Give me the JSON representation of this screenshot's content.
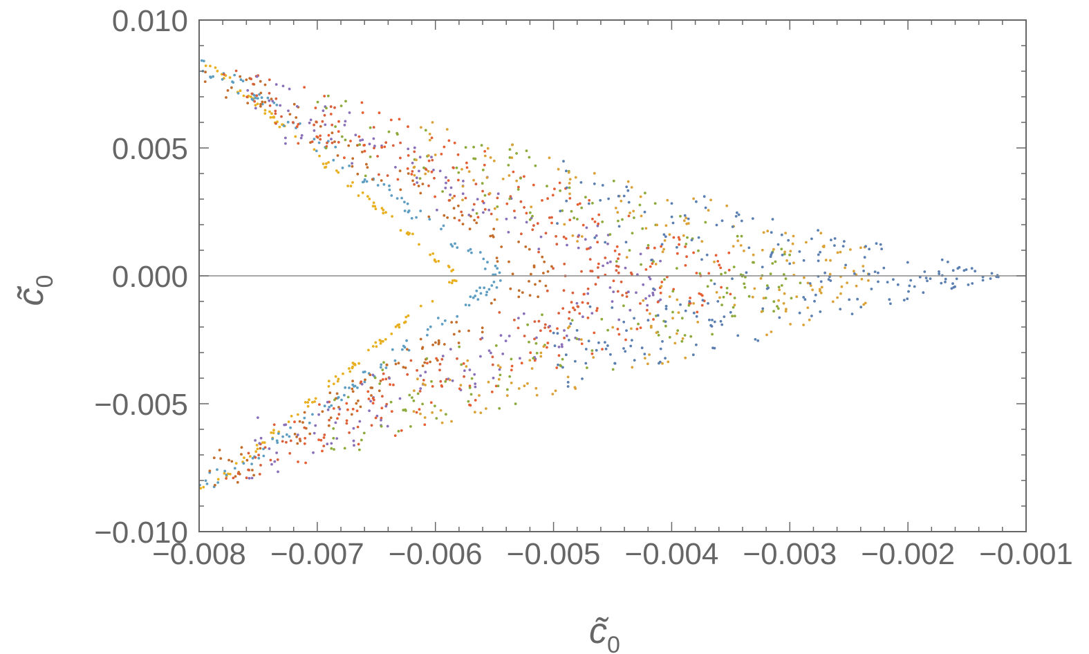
{
  "chart_data": {
    "type": "scatter",
    "title": "",
    "xlabel": {
      "base": "c̃",
      "sub": "0"
    },
    "ylabel": {
      "base": "c̃̇",
      "sub": "0"
    },
    "xlim": [
      -0.008,
      -0.001
    ],
    "ylim": [
      -0.01,
      0.01
    ],
    "x_ticks": [
      -0.008,
      -0.007,
      -0.006,
      -0.005,
      -0.004,
      -0.003,
      -0.002,
      -0.001
    ],
    "x_tick_labels": [
      "−0.008",
      "−0.007",
      "−0.006",
      "−0.005",
      "−0.004",
      "−0.003",
      "−0.002",
      "−0.001"
    ],
    "y_ticks": [
      -0.01,
      -0.005,
      0.0,
      0.005,
      0.01
    ],
    "y_tick_labels": [
      "−0.010",
      "−0.005",
      "0.000",
      "0.005",
      "0.010"
    ],
    "zero_line": true,
    "grid": false,
    "legend": "none",
    "series": [
      {
        "color": "#e8b020",
        "x_start": -0.008,
        "x_end": -0.0058,
        "thickness": 0.0003
      },
      {
        "color": "#5e9ec2",
        "x_start": -0.008,
        "x_end": -0.0054,
        "thickness": 0.0006
      },
      {
        "color": "#c46d2a",
        "x_start": -0.008,
        "x_end": -0.005,
        "thickness": 0.0012
      },
      {
        "color": "#d9603b",
        "x_start": -0.0078,
        "x_end": -0.0043,
        "thickness": 0.0016
      },
      {
        "color": "#8a70b8",
        "x_start": -0.0076,
        "x_end": -0.004,
        "thickness": 0.002
      },
      {
        "color": "#e65f33",
        "x_start": -0.0072,
        "x_end": -0.0035,
        "thickness": 0.0022
      },
      {
        "color": "#8cab3a",
        "x_start": -0.007,
        "x_end": -0.0029,
        "thickness": 0.0026
      },
      {
        "color": "#dba238",
        "x_start": -0.0062,
        "x_end": -0.0023,
        "thickness": 0.0026
      },
      {
        "color": "#5b7fb0",
        "x_start": -0.005,
        "x_end": -0.0012,
        "thickness": 0.0026
      }
    ],
    "envelope": {
      "outer": {
        "x": -0.008,
        "y_max": 0.0085,
        "tip_x": -0.0012
      },
      "inner_tip_x": -0.0058
    }
  }
}
